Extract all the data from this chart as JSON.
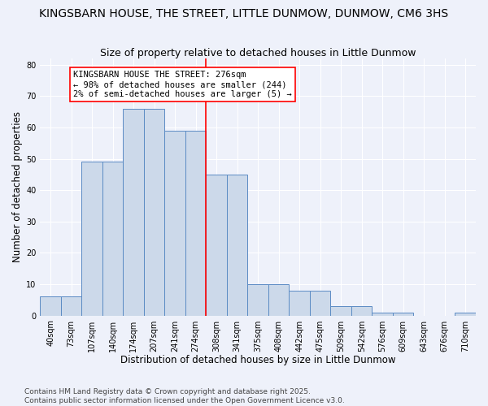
{
  "title": "KINGSBARN HOUSE, THE STREET, LITTLE DUNMOW, DUNMOW, CM6 3HS",
  "subtitle": "Size of property relative to detached houses in Little Dunmow",
  "xlabel": "Distribution of detached houses by size in Little Dunmow",
  "ylabel": "Number of detached properties",
  "categories": [
    "40sqm",
    "73sqm",
    "107sqm",
    "140sqm",
    "174sqm",
    "207sqm",
    "241sqm",
    "274sqm",
    "308sqm",
    "341sqm",
    "375sqm",
    "408sqm",
    "442sqm",
    "475sqm",
    "509sqm",
    "542sqm",
    "576sqm",
    "609sqm",
    "643sqm",
    "676sqm",
    "710sqm"
  ],
  "values": [
    6,
    6,
    49,
    49,
    66,
    66,
    59,
    59,
    45,
    45,
    10,
    10,
    8,
    8,
    3,
    3,
    1,
    1,
    0,
    0,
    1
  ],
  "bar_color": "#ccd9ea",
  "bar_edge_color": "#5b8bc4",
  "vline_position": 7.5,
  "vline_color": "red",
  "annotation_text": "KINGSBARN HOUSE THE STREET: 276sqm\n← 98% of detached houses are smaller (244)\n2% of semi-detached houses are larger (5) →",
  "annotation_box_color": "white",
  "annotation_box_edge": "red",
  "ylim": [
    0,
    82
  ],
  "yticks": [
    0,
    10,
    20,
    30,
    40,
    50,
    60,
    70,
    80
  ],
  "background_color": "#eef1fa",
  "grid_color": "white",
  "footer": "Contains HM Land Registry data © Crown copyright and database right 2025.\nContains public sector information licensed under the Open Government Licence v3.0.",
  "title_fontsize": 10,
  "subtitle_fontsize": 9,
  "xlabel_fontsize": 8.5,
  "ylabel_fontsize": 8.5,
  "tick_fontsize": 7,
  "annotation_fontsize": 7.5,
  "footer_fontsize": 6.5
}
